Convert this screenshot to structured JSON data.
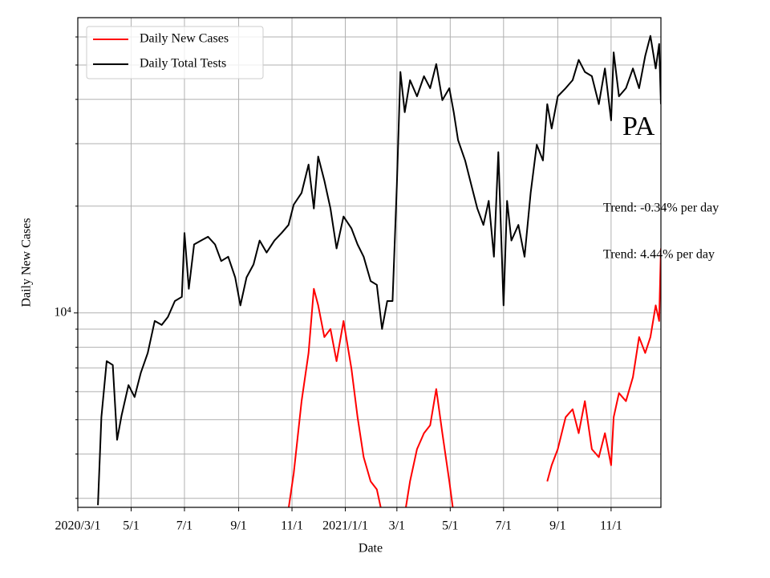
{
  "chart_data": {
    "type": "line",
    "xlabel": "Date",
    "ylabel": "Daily New Cases",
    "annotations": [
      "PA",
      "Trend: -0.34% per day",
      "Trend: 4.44% per day"
    ],
    "log_y": true,
    "grid": true,
    "legend": "upper left",
    "xlim": [
      "2020-03-01",
      "2021-12-28"
    ],
    "xticks": [
      {
        "value": "2020-03-01",
        "label": "2020/3/1"
      },
      {
        "value": "2020-05-01",
        "label": "5/1"
      },
      {
        "value": "2020-07-01",
        "label": "7/1"
      },
      {
        "value": "2020-09-01",
        "label": "9/1"
      },
      {
        "value": "2020-11-01",
        "label": "11/1"
      },
      {
        "value": "2021-01-01",
        "label": "2021/1/1"
      },
      {
        "value": "2021-03-01",
        "label": "3/1"
      },
      {
        "value": "2021-05-01",
        "label": "5/1"
      },
      {
        "value": "2021-07-01",
        "label": "7/1"
      },
      {
        "value": "2021-09-01",
        "label": "9/1"
      },
      {
        "value": "2021-11-01",
        "label": "11/1"
      }
    ],
    "ylim": [
      2830,
      68000
    ],
    "yticks": [
      {
        "value": 10000,
        "label": "10⁴"
      }
    ],
    "yminorticks": [
      3000,
      4000,
      5000,
      6000,
      7000,
      8000,
      9000,
      20000,
      30000,
      40000,
      50000,
      60000
    ],
    "x": [
      "2020-03-24",
      "2020-03-28",
      "2020-04-03",
      "2020-04-10",
      "2020-04-15",
      "2020-04-20",
      "2020-04-28",
      "2020-05-05",
      "2020-05-12",
      "2020-05-20",
      "2020-05-28",
      "2020-06-05",
      "2020-06-12",
      "2020-06-20",
      "2020-06-28",
      "2020-07-01",
      "2020-07-06",
      "2020-07-12",
      "2020-07-20",
      "2020-07-28",
      "2020-08-05",
      "2020-08-12",
      "2020-08-20",
      "2020-08-28",
      "2020-09-03",
      "2020-09-10",
      "2020-09-18",
      "2020-09-25",
      "2020-10-03",
      "2020-10-12",
      "2020-10-20",
      "2020-10-28",
      "2020-11-03",
      "2020-11-12",
      "2020-11-20",
      "2020-11-26",
      "2020-12-01",
      "2020-12-08",
      "2020-12-15",
      "2020-12-22",
      "2020-12-30",
      "2021-01-08",
      "2021-01-15",
      "2021-01-22",
      "2021-01-30",
      "2021-02-06",
      "2021-02-12",
      "2021-02-18",
      "2021-02-24",
      "2021-03-01",
      "2021-03-05",
      "2021-03-10",
      "2021-03-16",
      "2021-03-24",
      "2021-04-01",
      "2021-04-08",
      "2021-04-15",
      "2021-04-22",
      "2021-04-30",
      "2021-05-05",
      "2021-05-10",
      "2021-05-18",
      "2021-05-25",
      "2021-06-01",
      "2021-06-08",
      "2021-06-14",
      "2021-06-20",
      "2021-06-25",
      "2021-07-01",
      "2021-07-05",
      "2021-07-10",
      "2021-07-18",
      "2021-07-25",
      "2021-08-01",
      "2021-08-08",
      "2021-08-15",
      "2021-08-20",
      "2021-08-25",
      "2021-09-01",
      "2021-09-10",
      "2021-09-18",
      "2021-09-25",
      "2021-10-02",
      "2021-10-10",
      "2021-10-18",
      "2021-10-25",
      "2021-11-01",
      "2021-11-04",
      "2021-11-10",
      "2021-11-18",
      "2021-11-26",
      "2021-12-03",
      "2021-12-10",
      "2021-12-16",
      "2021-12-22",
      "2021-12-26",
      "2021-12-28"
    ],
    "series": [
      {
        "name": "Daily New Cases",
        "color": "#ff0000",
        "values": [
          null,
          null,
          null,
          null,
          null,
          null,
          null,
          null,
          null,
          null,
          null,
          null,
          null,
          null,
          null,
          null,
          null,
          null,
          null,
          null,
          null,
          null,
          null,
          null,
          null,
          null,
          null,
          null,
          null,
          null,
          null,
          2800,
          3530,
          5640,
          7710,
          11700,
          10500,
          8550,
          9010,
          7310,
          9490,
          6950,
          5080,
          3920,
          3350,
          3180,
          2720,
          2700,
          2700,
          2600,
          2700,
          2700,
          3350,
          4130,
          4580,
          4820,
          6100,
          4580,
          3350,
          2700,
          null,
          null,
          null,
          null,
          null,
          null,
          null,
          null,
          null,
          null,
          null,
          null,
          null,
          null,
          null,
          null,
          3350,
          3720,
          4130,
          5080,
          5350,
          4580,
          5640,
          4130,
          3920,
          4580,
          3720,
          5080,
          5940,
          5640,
          6590,
          8550,
          7710,
          8550,
          10500,
          9490,
          15200
        ]
      },
      {
        "name": "Daily Total Tests",
        "color": "#000000",
        "values": [
          2870,
          5080,
          7310,
          7130,
          4390,
          5130,
          6260,
          5790,
          6770,
          7710,
          9490,
          9250,
          9740,
          10800,
          11100,
          16800,
          11700,
          15600,
          16000,
          16400,
          15600,
          14000,
          14400,
          12600,
          10500,
          12600,
          13700,
          16000,
          14800,
          16000,
          16800,
          17700,
          20200,
          21800,
          26200,
          19700,
          27600,
          23600,
          19700,
          15200,
          18700,
          17300,
          15600,
          14400,
          12300,
          12000,
          9010,
          10800,
          10800,
          23000,
          47800,
          36800,
          45300,
          40800,
          46500,
          43000,
          50300,
          39800,
          43000,
          36800,
          30700,
          26900,
          23000,
          19700,
          17700,
          20700,
          14400,
          28400,
          10500,
          20700,
          16000,
          17700,
          14400,
          21800,
          29800,
          26900,
          38800,
          33100,
          40800,
          43000,
          45300,
          51700,
          47800,
          46500,
          38800,
          48900,
          34900,
          54300,
          40800,
          43000,
          48900,
          43000,
          53000,
          60400,
          48900,
          57300,
          38800
        ]
      }
    ]
  }
}
